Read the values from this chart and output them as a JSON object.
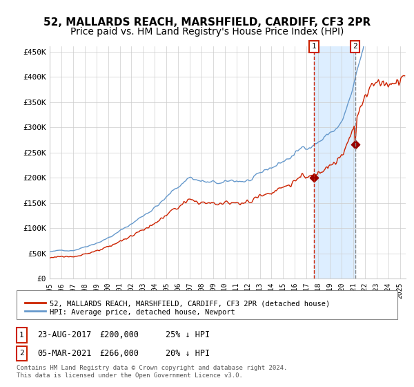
{
  "title1": "52, MALLARDS REACH, MARSHFIELD, CARDIFF, CF3 2PR",
  "title2": "Price paid vs. HM Land Registry's House Price Index (HPI)",
  "ylabel_ticks": [
    "£0",
    "£50K",
    "£100K",
    "£150K",
    "£200K",
    "£250K",
    "£300K",
    "£350K",
    "£400K",
    "£450K"
  ],
  "ylabel_values": [
    0,
    50000,
    100000,
    150000,
    200000,
    250000,
    300000,
    350000,
    400000,
    450000
  ],
  "ylim": [
    0,
    460000
  ],
  "sale1_date_year": 2017.65,
  "sale1_price": 200000,
  "sale1_label": "1",
  "sale2_date_year": 2021.17,
  "sale2_price": 266000,
  "sale2_label": "2",
  "legend_line1": "52, MALLARDS REACH, MARSHFIELD, CARDIFF, CF3 2PR (detached house)",
  "legend_line2": "HPI: Average price, detached house, Newport",
  "note1_label": "1",
  "note1_date": "23-AUG-2017",
  "note1_price": "£200,000",
  "note1_pct": "25% ↓ HPI",
  "note2_label": "2",
  "note2_date": "05-MAR-2021",
  "note2_price": "£266,000",
  "note2_pct": "20% ↓ HPI",
  "copyright": "Contains HM Land Registry data © Crown copyright and database right 2024.\nThis data is licensed under the Open Government Licence v3.0.",
  "hpi_color": "#6699cc",
  "price_color": "#cc2200",
  "marker_color": "#990000",
  "dashed_line_color": "#cc2200",
  "shade_color": "#ddeeff",
  "grid_color": "#cccccc",
  "background_color": "#ffffff",
  "title_fontsize": 11,
  "subtitle_fontsize": 10
}
